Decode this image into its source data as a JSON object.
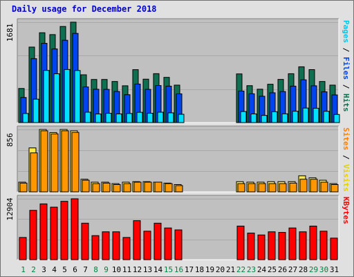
{
  "title": "Daily usage for December 2018",
  "colors": {
    "frame": "#e0e0e0",
    "plot": "#c0c0c0",
    "hits": "#0e7050",
    "files": "#0044f0",
    "pages": "#00e0ff",
    "visits": "#ffe848",
    "sites": "#ff9800",
    "kbytes": "#ff0000",
    "weekday": "#000000",
    "weekend": "#008040",
    "title": "#0000d0"
  },
  "panels": {
    "top": {
      "ymax_label": "1681",
      "right_label": [
        "Pages",
        "Files",
        "Hits"
      ]
    },
    "middle": {
      "ymax_label": "856",
      "right_label": [
        "Sites",
        "Visits"
      ]
    },
    "bottom": {
      "ymax_label": "12904",
      "right_label": [
        "KBytes"
      ]
    }
  },
  "chart_data": [
    {
      "type": "bar",
      "panel": "top",
      "ylim": [
        0,
        1681
      ],
      "categories": [
        "1",
        "2",
        "3",
        "4",
        "5",
        "6",
        "7",
        "8",
        "9",
        "10",
        "11",
        "12",
        "13",
        "14",
        "15",
        "16",
        "17",
        "18",
        "19",
        "20",
        "21",
        "22",
        "23",
        "24",
        "25",
        "26",
        "27",
        "28",
        "29",
        "30",
        "31"
      ],
      "weekend": [
        1,
        2,
        8,
        9,
        15,
        16,
        22,
        23,
        29,
        30
      ],
      "series": [
        {
          "name": "Hits",
          "values": [
            571,
            1264,
            1504,
            1473,
            1609,
            1681,
            800,
            722,
            722,
            688,
            616,
            886,
            727,
            819,
            757,
            627,
            0,
            0,
            0,
            0,
            0,
            815,
            618,
            559,
            642,
            723,
            818,
            934,
            887,
            688,
            627
          ]
        },
        {
          "name": "Files",
          "values": [
            420,
            1070,
            1327,
            1233,
            1378,
            1493,
            597,
            558,
            556,
            521,
            467,
            645,
            556,
            620,
            610,
            481,
            0,
            0,
            0,
            0,
            0,
            528,
            482,
            441,
            499,
            520,
            610,
            716,
            616,
            515,
            463
          ]
        },
        {
          "name": "Pages",
          "values": [
            152,
            392,
            873,
            817,
            889,
            872,
            174,
            144,
            155,
            145,
            152,
            172,
            156,
            174,
            163,
            139,
            0,
            0,
            0,
            0,
            0,
            185,
            145,
            120,
            182,
            147,
            190,
            243,
            240,
            189,
            136
          ]
        }
      ]
    },
    {
      "type": "bar",
      "panel": "middle",
      "ylim": [
        0,
        856
      ],
      "categories": [
        "1",
        "2",
        "3",
        "4",
        "5",
        "6",
        "7",
        "8",
        "9",
        "10",
        "11",
        "12",
        "13",
        "14",
        "15",
        "16",
        "17",
        "18",
        "19",
        "20",
        "21",
        "22",
        "23",
        "24",
        "25",
        "26",
        "27",
        "28",
        "29",
        "30",
        "31"
      ],
      "weekend": [
        1,
        2,
        8,
        9,
        15,
        16,
        22,
        23,
        29,
        30
      ],
      "series": [
        {
          "name": "Visits",
          "values": [
            133,
            603,
            856,
            814,
            856,
            838,
            173,
            133,
            133,
            113,
            133,
            140,
            140,
            133,
            120,
            100,
            0,
            0,
            0,
            0,
            0,
            140,
            133,
            133,
            140,
            140,
            140,
            220,
            193,
            160,
            113
          ]
        },
        {
          "name": "Sites",
          "values": [
            120,
            535,
            838,
            796,
            838,
            816,
            160,
            113,
            120,
            100,
            113,
            133,
            133,
            133,
            113,
            86,
            0,
            0,
            0,
            0,
            0,
            113,
            113,
            113,
            113,
            113,
            120,
            173,
            173,
            133,
            100
          ]
        }
      ]
    },
    {
      "type": "bar",
      "panel": "bottom",
      "ylim": [
        0,
        12904
      ],
      "categories": [
        "1",
        "2",
        "3",
        "4",
        "5",
        "6",
        "7",
        "8",
        "9",
        "10",
        "11",
        "12",
        "13",
        "14",
        "15",
        "16",
        "17",
        "18",
        "19",
        "20",
        "21",
        "22",
        "23",
        "24",
        "25",
        "26",
        "27",
        "28",
        "29",
        "30",
        "31"
      ],
      "weekend": [
        1,
        2,
        8,
        9,
        15,
        16,
        22,
        23,
        29,
        30
      ],
      "series": [
        {
          "name": "KBytes",
          "values": [
            4710,
            10450,
            11820,
            11130,
            12370,
            12904,
            7730,
            5100,
            5910,
            5910,
            4710,
            8270,
            6040,
            7730,
            6720,
            6310,
            0,
            0,
            0,
            0,
            0,
            7120,
            5640,
            5240,
            5910,
            5780,
            6720,
            5910,
            7120,
            6040,
            4570
          ]
        }
      ]
    }
  ],
  "x_axis_labels": [
    "1",
    "2",
    "3",
    "4",
    "5",
    "6",
    "7",
    "8",
    "9",
    "10",
    "11",
    "12",
    "13",
    "14",
    "15",
    "16",
    "17",
    "18",
    "19",
    "20",
    "21",
    "22",
    "23",
    "24",
    "25",
    "26",
    "27",
    "28",
    "29",
    "30",
    "31"
  ]
}
